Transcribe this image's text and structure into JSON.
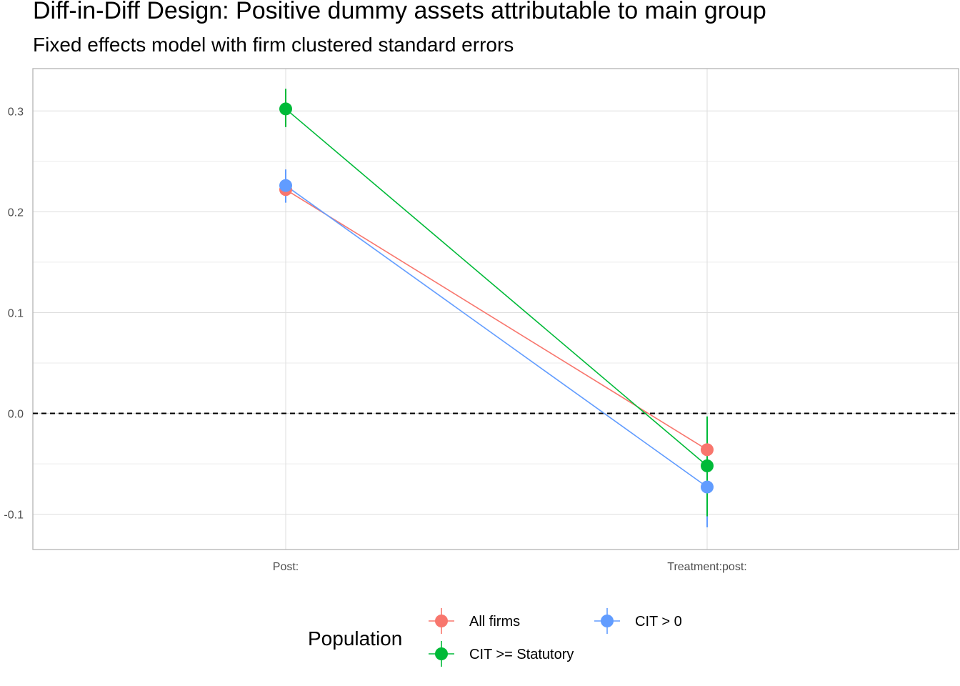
{
  "chart_data": {
    "type": "scatter",
    "title": "Diff-in-Diff Design: Positive dummy assets attributable to main group",
    "subtitle": "Fixed effects model with firm clustered standard errors",
    "xlabel": "",
    "ylabel": "",
    "categories": [
      "Post:",
      "Treatment:post:"
    ],
    "ylim": [
      -0.135,
      0.342
    ],
    "yticks": [
      -0.1,
      0.0,
      0.1,
      0.2,
      0.3
    ],
    "ytick_labels": [
      "-0.1",
      "0.0",
      "0.1",
      "0.2",
      "0.3"
    ],
    "grid": true,
    "reference_line": {
      "y": 0,
      "style": "dashed"
    },
    "series": [
      {
        "name": "All firms",
        "color": "#F8766D",
        "values": [
          0.222,
          -0.036
        ],
        "ci_low": [
          0.212,
          -0.04
        ],
        "ci_high": [
          0.232,
          -0.032
        ]
      },
      {
        "name": "CIT > 0",
        "color": "#619CFF",
        "values": [
          0.226,
          -0.073
        ],
        "ci_low": [
          0.209,
          -0.113
        ],
        "ci_high": [
          0.242,
          -0.034
        ]
      },
      {
        "name": "CIT >= Statutory",
        "color": "#00BA38",
        "values": [
          0.302,
          -0.052
        ],
        "ci_low": [
          0.284,
          -0.102
        ],
        "ci_high": [
          0.322,
          -0.003
        ]
      }
    ],
    "legend": {
      "title": "Population",
      "position": "bottom"
    }
  }
}
